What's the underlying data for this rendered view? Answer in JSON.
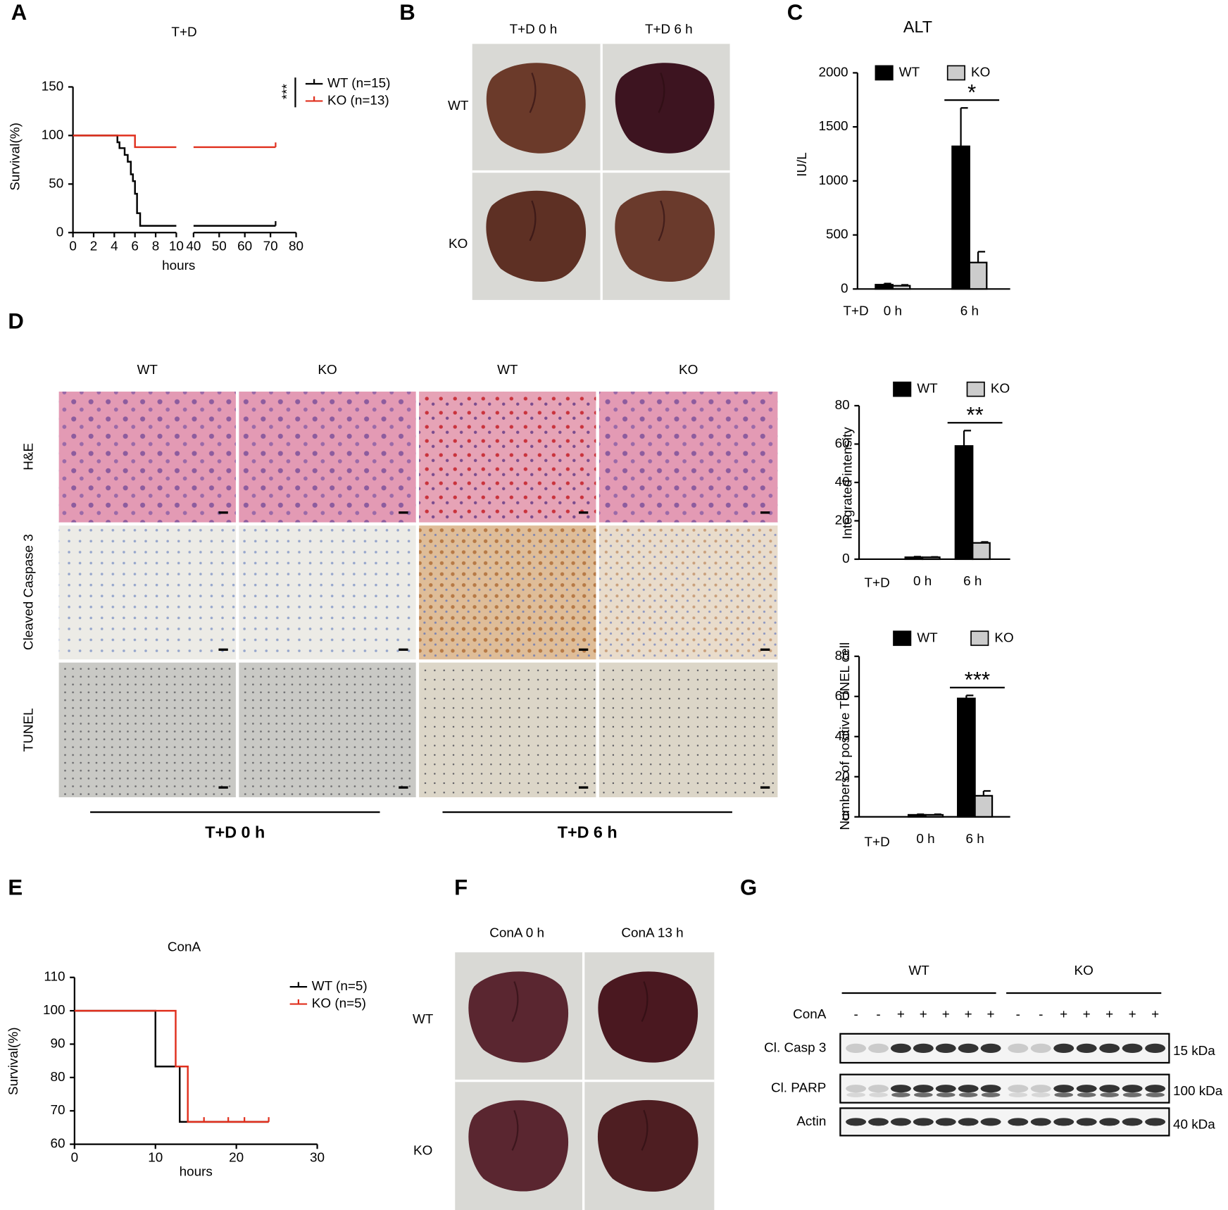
{
  "chart_data": [
    {
      "panel": "A",
      "type": "survival",
      "title": "T+D",
      "xlabel": "hours",
      "ylabel": "Survival(%)",
      "xlim": [
        0,
        80
      ],
      "axis_break": [
        10,
        40
      ],
      "xticks": [
        0,
        2,
        4,
        6,
        8,
        10,
        40,
        50,
        60,
        70,
        80
      ],
      "ylim": [
        0,
        150
      ],
      "yticks": [
        0,
        50,
        100,
        150
      ],
      "series": [
        {
          "name": "WT (n=15)",
          "color": "#000000",
          "x": [
            0,
            4.3,
            4.5,
            5,
            5.3,
            5.6,
            5.8,
            6,
            6.2,
            6.5,
            72
          ],
          "values": [
            100,
            93,
            87,
            80,
            73,
            60,
            53,
            40,
            20,
            7,
            7
          ],
          "censored": [
            72
          ]
        },
        {
          "name": "KO (n=13)",
          "color": "#e0301e",
          "x": [
            0,
            6,
            72
          ],
          "values": [
            100,
            88,
            88
          ],
          "censored": [
            72
          ]
        }
      ],
      "significance": "***"
    },
    {
      "panel": "C",
      "type": "bar",
      "title": "ALT",
      "ylabel": "IU/L",
      "category_label": "T+D",
      "categories": [
        "0 h",
        "6 h"
      ],
      "ylim": [
        0,
        2000
      ],
      "yticks": [
        0,
        500,
        1000,
        1500,
        2000
      ],
      "series": [
        {
          "name": "WT",
          "color": "#000000",
          "values": [
            40,
            1320
          ],
          "error": [
            10,
            355
          ]
        },
        {
          "name": "KO",
          "color": "#cccccc",
          "values": [
            30,
            245
          ],
          "error": [
            8,
            100
          ]
        }
      ],
      "significance": "*"
    },
    {
      "type": "bar",
      "ylabel": "Integrated intensity",
      "category_label": "T+D",
      "categories": [
        "0 h",
        "6 h"
      ],
      "ylim": [
        0,
        80
      ],
      "yticks": [
        0,
        20,
        40,
        60,
        80
      ],
      "series": [
        {
          "name": "WT",
          "color": "#000000",
          "values": [
            1,
            59
          ],
          "error": [
            0.3,
            8
          ]
        },
        {
          "name": "KO",
          "color": "#cccccc",
          "values": [
            1,
            8.5
          ],
          "error": [
            0.2,
            0.5
          ]
        }
      ],
      "significance": "**"
    },
    {
      "type": "bar",
      "ylabel": "Numbers of positive TUNEL cell",
      "category_label": "T+D",
      "categories": [
        "0 h",
        "6 h"
      ],
      "ylim": [
        0,
        80
      ],
      "yticks": [
        0,
        20,
        40,
        60,
        80
      ],
      "series": [
        {
          "name": "WT",
          "color": "#000000",
          "values": [
            1,
            59
          ],
          "error": [
            0.3,
            1.5
          ]
        },
        {
          "name": "KO",
          "color": "#cccccc",
          "values": [
            1,
            10.5
          ],
          "error": [
            0.3,
            2.4
          ]
        }
      ],
      "significance": "***"
    },
    {
      "panel": "E",
      "type": "survival",
      "title": "ConA",
      "xlabel": "hours",
      "ylabel": "Survival(%)",
      "xlim": [
        0,
        30
      ],
      "xticks": [
        0,
        10,
        20,
        30
      ],
      "ylim": [
        60,
        110
      ],
      "yticks": [
        60,
        70,
        80,
        90,
        100,
        110
      ],
      "series": [
        {
          "name": "WT (n=5)",
          "color": "#000000",
          "x": [
            0,
            10,
            13,
            24
          ],
          "values": [
            100,
            83.3,
            66.7,
            66.7
          ],
          "censored": []
        },
        {
          "name": "KO (n=5)",
          "color": "#e0301e",
          "x": [
            0,
            12.5,
            14,
            24
          ],
          "values": [
            100,
            83.3,
            66.7,
            66.7
          ],
          "censored": [
            16,
            19,
            21,
            24
          ]
        }
      ]
    }
  ],
  "panels": {
    "B": {
      "label": "B",
      "columns": [
        "T+D 0 h",
        "T+D 6 h"
      ],
      "rows": [
        "WT",
        "KO"
      ]
    },
    "D": {
      "label": "D",
      "columns": [
        "WT",
        "KO",
        "WT",
        "KO"
      ],
      "rows": [
        "H&E",
        "Cleaved Caspase 3",
        "TUNEL"
      ],
      "groups": [
        "T+D 0 h",
        "T+D 6 h"
      ]
    },
    "F": {
      "label": "F",
      "columns": [
        "ConA 0 h",
        "ConA 13 h"
      ],
      "rows": [
        "WT",
        "KO"
      ]
    },
    "G": {
      "label": "G",
      "groups": [
        "WT",
        "KO"
      ],
      "treatment": "ConA",
      "lanes": [
        "-",
        "-",
        "+",
        "+",
        "+",
        "+",
        "+",
        "-",
        "-",
        "+",
        "+",
        "+",
        "+",
        "+"
      ],
      "rows": [
        "Cl. Casp 3",
        "Cl. PARP",
        "Actin"
      ],
      "sizes": [
        "15 kDa",
        "100 kDa",
        "40 kDa"
      ]
    }
  }
}
